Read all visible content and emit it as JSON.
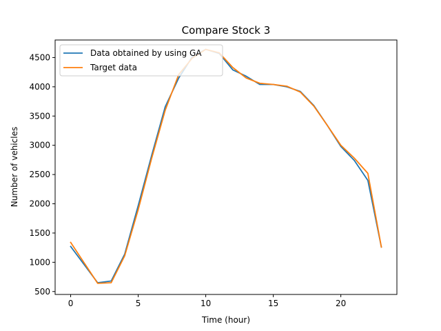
{
  "chart_data": {
    "type": "line",
    "title": "Compare Stock 3",
    "xlabel": "Time (hour)",
    "ylabel": "Number of vehicles",
    "xlim": [
      -1.15,
      24.15
    ],
    "ylim": [
      450,
      4800
    ],
    "xticks": [
      0,
      5,
      10,
      15,
      20
    ],
    "yticks": [
      500,
      1000,
      1500,
      2000,
      2500,
      3000,
      3500,
      4000,
      4500
    ],
    "grid": false,
    "legend_position": "top-left",
    "x": [
      0,
      1,
      2,
      3,
      4,
      5,
      6,
      7,
      8,
      9,
      10,
      11,
      12,
      13,
      14,
      15,
      16,
      17,
      18,
      19,
      20,
      21,
      22,
      23
    ],
    "series": [
      {
        "name": "Data obtained by using GA",
        "color": "#1f77b4",
        "values": [
          1270,
          960,
          650,
          680,
          1140,
          1970,
          2830,
          3660,
          4150,
          4510,
          4640,
          4570,
          4290,
          4180,
          4040,
          4040,
          4000,
          3920,
          3680,
          3340,
          2980,
          2740,
          2400,
          1260
        ]
      },
      {
        "name": "Target data",
        "color": "#ff7f0e",
        "values": [
          1340,
          990,
          640,
          650,
          1110,
          1900,
          2780,
          3600,
          4210,
          4490,
          4640,
          4580,
          4330,
          4150,
          4060,
          4040,
          4010,
          3910,
          3670,
          3340,
          3000,
          2780,
          2520,
          1260
        ]
      }
    ]
  }
}
